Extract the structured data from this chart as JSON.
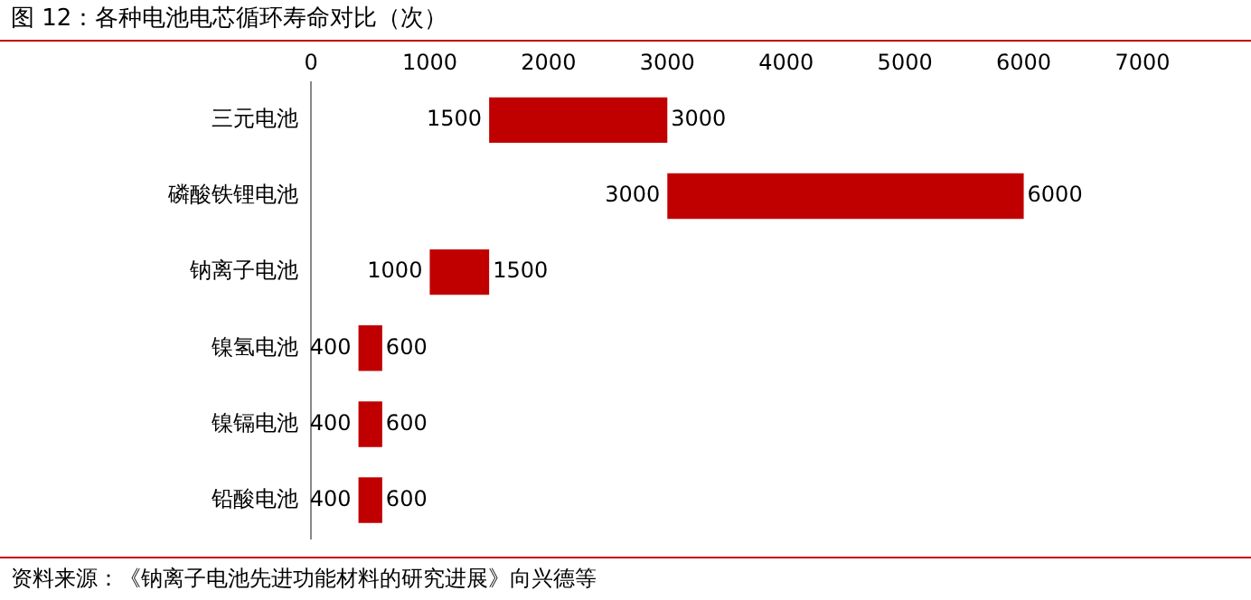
{
  "chart_data": {
    "type": "bar",
    "orientation": "horizontal",
    "title": "图 12：各种电池电芯循环寿命对比（次）",
    "categories": [
      "三元电池",
      "磷酸铁锂电池",
      "钠离子电池",
      "镍氢电池",
      "镍镉电池",
      "铅酸电池"
    ],
    "base": [
      1500,
      3000,
      1000,
      400,
      400,
      400
    ],
    "values": [
      1500,
      3000,
      500,
      200,
      200,
      200
    ],
    "color": "#c00000",
    "xlim": [
      0,
      7000
    ],
    "xticks": [
      0,
      1000,
      2000,
      3000,
      4000,
      5000,
      6000,
      7000
    ],
    "grid": false,
    "legend": false,
    "annotations": [
      {
        "text": "1500",
        "x": 1500,
        "y": "三元电池"
      },
      {
        "text": "3000",
        "x": 3000,
        "y": "三元电池"
      },
      {
        "text": "3000",
        "x": 3000,
        "y": "磷酸铁锂电池"
      },
      {
        "text": "6000",
        "x": 6000,
        "y": "磷酸铁锂电池"
      },
      {
        "text": "1000",
        "x": 1000,
        "y": "钠离子电池"
      },
      {
        "text": "1500",
        "x": 1500,
        "y": "钠离子电池"
      },
      {
        "text": "400",
        "x": 400,
        "y": "镍氢电池"
      },
      {
        "text": "600",
        "x": 600,
        "y": "镍氢电池"
      },
      {
        "text": "400",
        "x": 400,
        "y": "镍镉电池"
      },
      {
        "text": "600",
        "x": 600,
        "y": "镍镉电池"
      },
      {
        "text": "400",
        "x": 400,
        "y": "铅酸电池"
      },
      {
        "text": "600",
        "x": 600,
        "y": "铅酸电池"
      },
      "资料来源：《钠离子电池先进功能材料的研究进展》向兴德等"
    ]
  }
}
